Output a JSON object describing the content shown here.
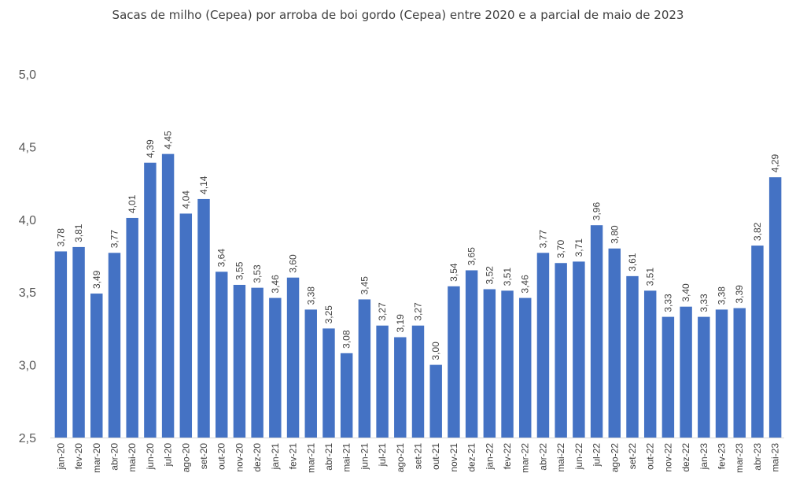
{
  "chart_data": {
    "type": "bar",
    "title": "Sacas de milho (Cepea) por arroba de boi gordo (Cepea) entre 2020 e a parcial de maio de 2023",
    "xlabel": "",
    "ylabel": "",
    "ylim": [
      2.5,
      5.0
    ],
    "yticks": [
      "2,5",
      "3,0",
      "3,5",
      "4,0",
      "4,5",
      "5,0"
    ],
    "grid": false,
    "bar_color": "#4472C4",
    "categories": [
      "jan-20",
      "fev-20",
      "mar-20",
      "abr-20",
      "mai-20",
      "jun-20",
      "jul-20",
      "ago-20",
      "set-20",
      "out-20",
      "nov-20",
      "dez-20",
      "jan-21",
      "fev-21",
      "mar-21",
      "abr-21",
      "mai-21",
      "jun-21",
      "jul-21",
      "ago-21",
      "set-21",
      "out-21",
      "nov-21",
      "dez-21",
      "jan-22",
      "fev-22",
      "mar-22",
      "abr-22",
      "mai-22",
      "jun-22",
      "jul-22",
      "ago-22",
      "set-22",
      "out-22",
      "nov-22",
      "dez-22",
      "jan-23",
      "fev-23",
      "mar-23",
      "abr-23",
      "mai-23"
    ],
    "values": [
      3.78,
      3.81,
      3.49,
      3.77,
      4.01,
      4.39,
      4.45,
      4.04,
      4.14,
      3.64,
      3.55,
      3.53,
      3.46,
      3.6,
      3.38,
      3.25,
      3.08,
      3.45,
      3.27,
      3.19,
      3.27,
      3.0,
      3.54,
      3.65,
      3.52,
      3.51,
      3.46,
      3.77,
      3.7,
      3.71,
      3.96,
      3.8,
      3.61,
      3.51,
      3.33,
      3.4,
      3.33,
      3.38,
      3.39,
      3.82,
      4.29
    ],
    "data_labels": [
      "3,78",
      "3,81",
      "3,49",
      "3,77",
      "4,01",
      "4,39",
      "4,45",
      "4,04",
      "4,14",
      "3,64",
      "3,55",
      "3,53",
      "3,46",
      "3,60",
      "3,38",
      "3,25",
      "3,08",
      "3,45",
      "3,27",
      "3,19",
      "3,27",
      "3,00",
      "3,54",
      "3,65",
      "3,52",
      "3,51",
      "3,46",
      "3,77",
      "3,70",
      "3,71",
      "3,96",
      "3,80",
      "3,61",
      "3,51",
      "3,33",
      "3,40",
      "3,33",
      "3,38",
      "3,39",
      "3,82",
      "4,29"
    ]
  }
}
